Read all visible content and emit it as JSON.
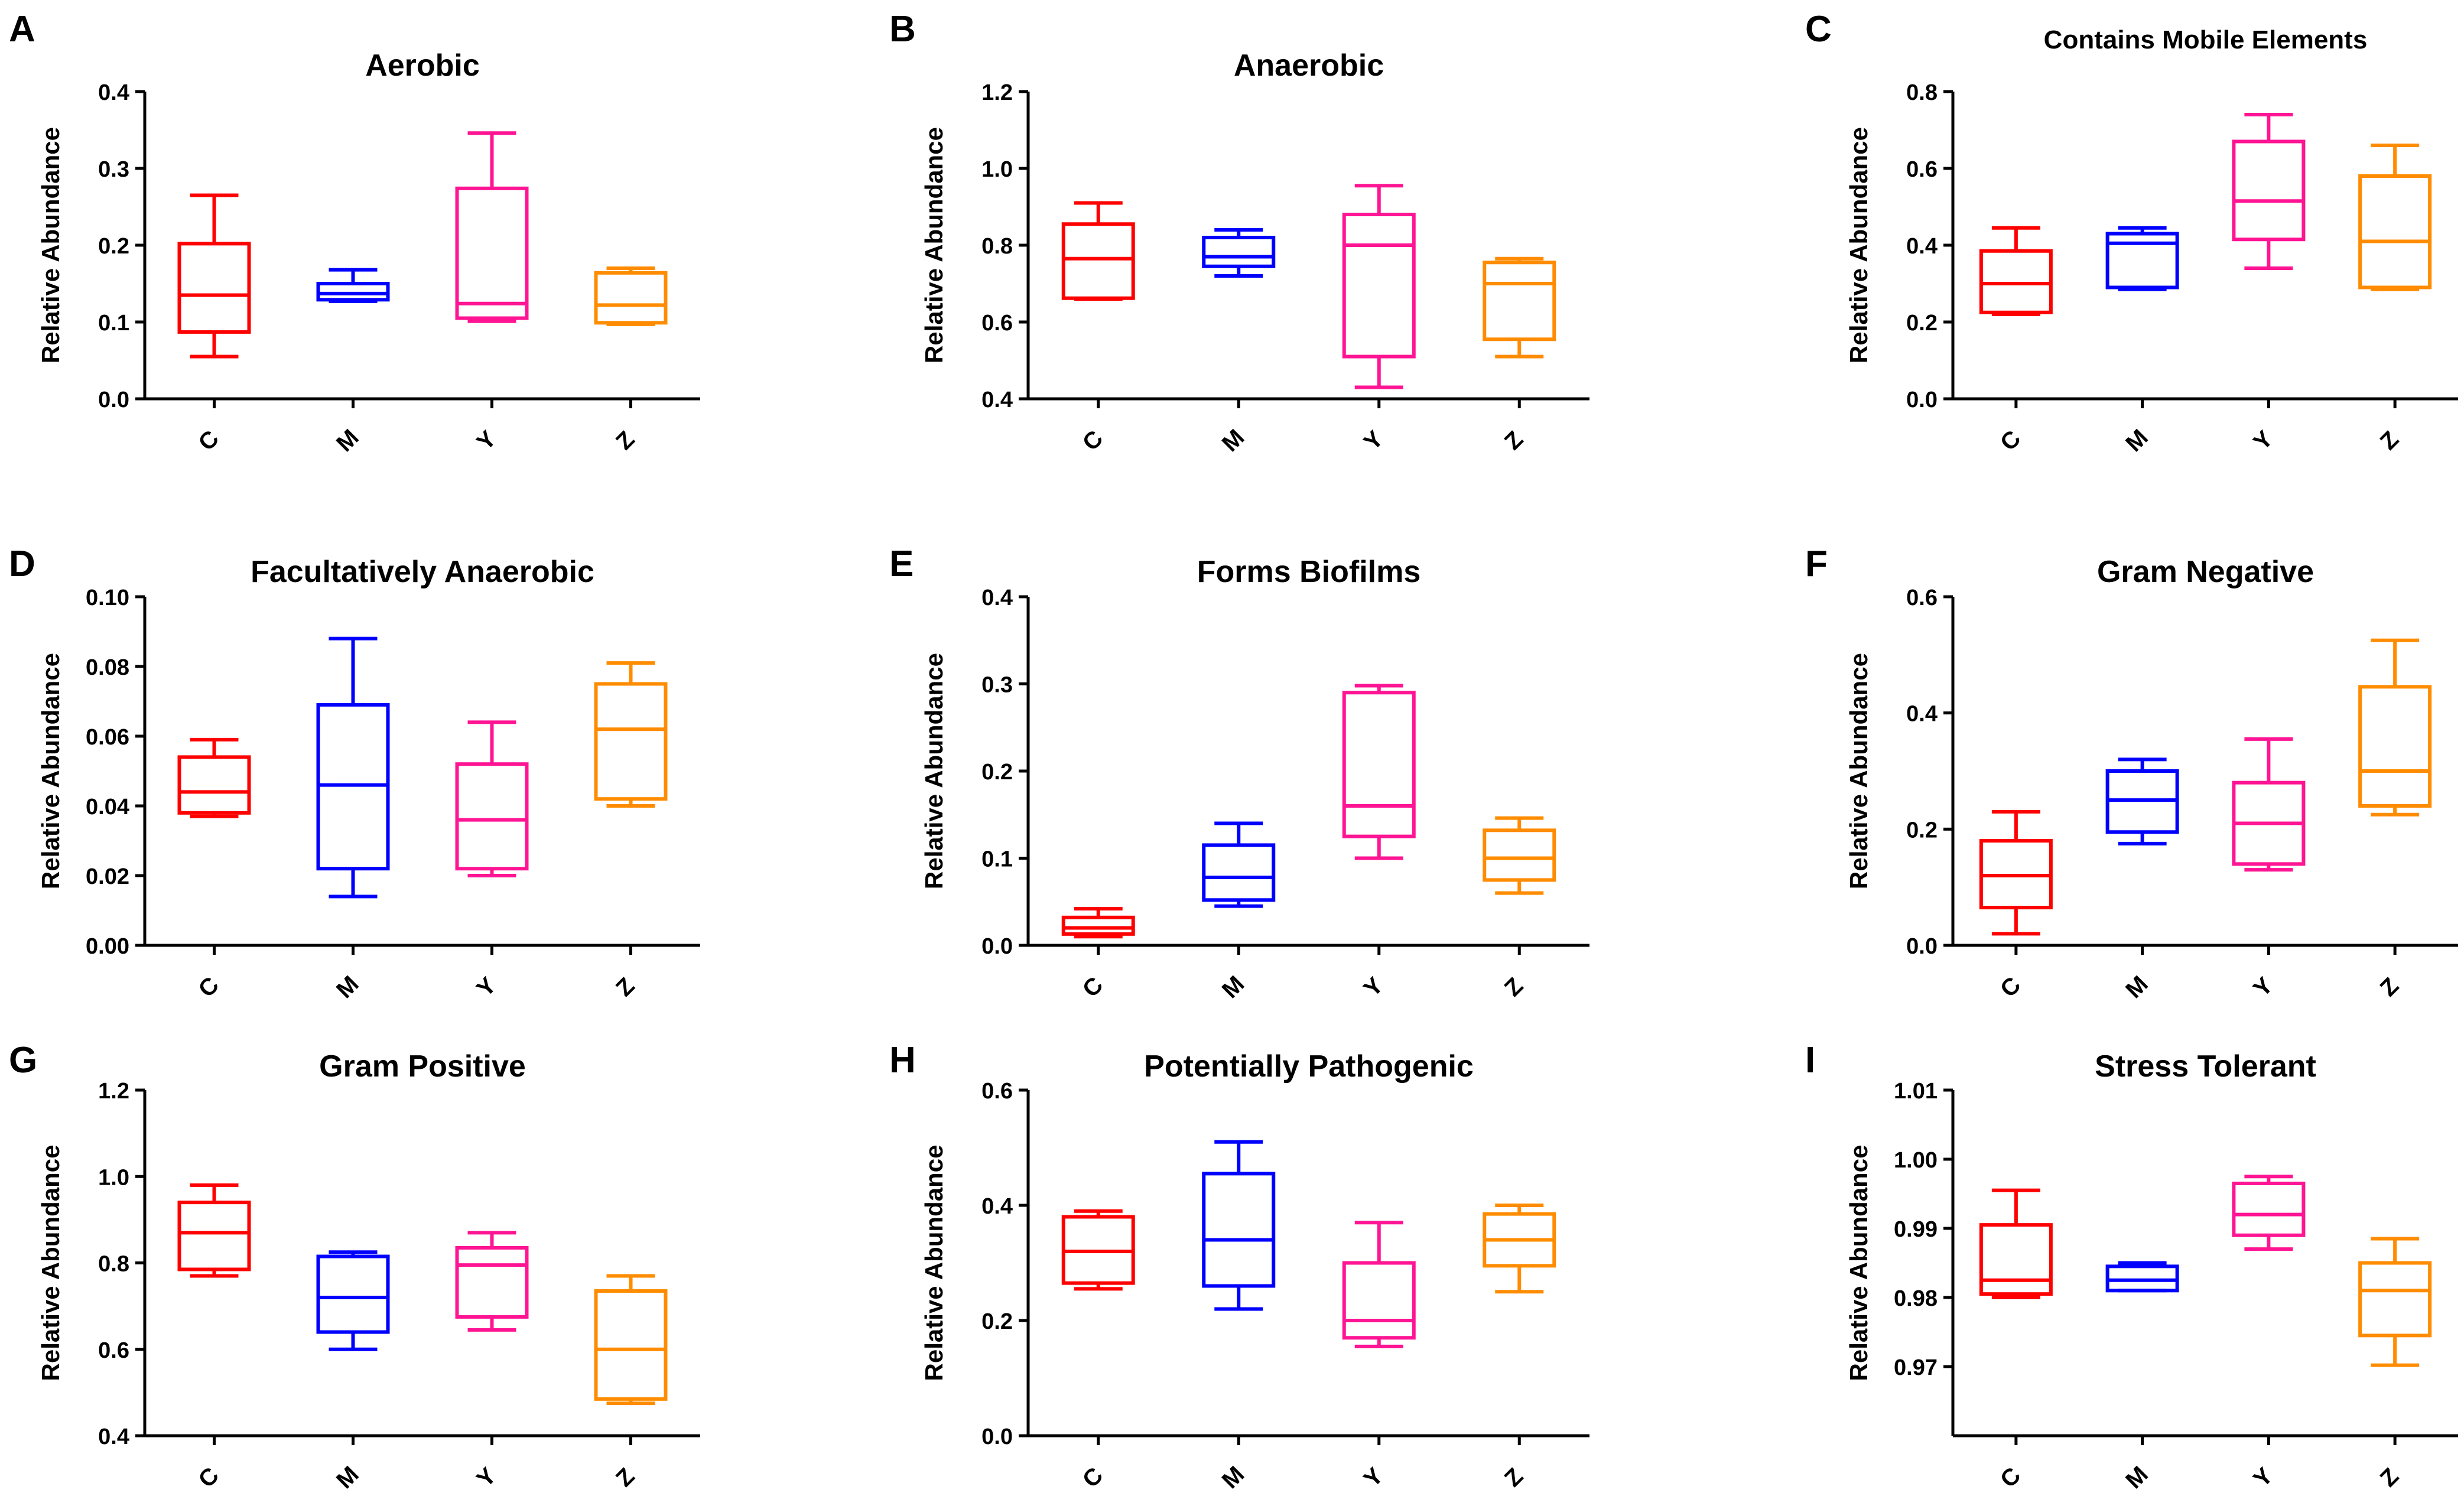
{
  "figure": {
    "ylabel": "Relative Abundance",
    "groups": [
      "C",
      "M",
      "Y",
      "Z"
    ],
    "group_colors": [
      "#ff0000",
      "#0000ff",
      "#ff1493",
      "#ff8c00"
    ]
  },
  "chart_data": [
    {
      "panel": "A",
      "title": "Aerobic",
      "type": "box",
      "xlabel": "",
      "ylabel": "Relative Abundance",
      "categories": [
        "C",
        "M",
        "Y",
        "Z"
      ],
      "ylim": [
        0,
        0.4
      ],
      "yticks": [
        "0.0",
        "0.1",
        "0.2",
        "0.3",
        "0.4"
      ],
      "boxes": [
        {
          "min": 0.055,
          "q1": 0.087,
          "median": 0.135,
          "q3": 0.202,
          "max": 0.265
        },
        {
          "min": 0.127,
          "q1": 0.129,
          "median": 0.137,
          "q3": 0.15,
          "max": 0.168
        },
        {
          "min": 0.101,
          "q1": 0.105,
          "median": 0.124,
          "q3": 0.274,
          "max": 0.346
        },
        {
          "min": 0.097,
          "q1": 0.099,
          "median": 0.122,
          "q3": 0.164,
          "max": 0.17
        }
      ]
    },
    {
      "panel": "B",
      "title": "Anaerobic",
      "type": "box",
      "xlabel": "",
      "ylabel": "Relative Abundance",
      "categories": [
        "C",
        "M",
        "Y",
        "Z"
      ],
      "ylim": [
        0.4,
        1.2
      ],
      "yticks": [
        "0.4",
        "0.6",
        "0.8",
        "1.0",
        "1.2"
      ],
      "boxes": [
        {
          "min": 0.66,
          "q1": 0.662,
          "median": 0.765,
          "q3": 0.855,
          "max": 0.91
        },
        {
          "min": 0.72,
          "q1": 0.745,
          "median": 0.77,
          "q3": 0.82,
          "max": 0.84
        },
        {
          "min": 0.43,
          "q1": 0.51,
          "median": 0.8,
          "q3": 0.88,
          "max": 0.955
        },
        {
          "min": 0.51,
          "q1": 0.555,
          "median": 0.7,
          "q3": 0.755,
          "max": 0.765
        }
      ]
    },
    {
      "panel": "C",
      "title": "Contains Mobile Elements",
      "type": "box",
      "xlabel": "",
      "ylabel": "Relative Abundance",
      "categories": [
        "C",
        "M",
        "Y",
        "Z"
      ],
      "ylim": [
        0,
        0.8
      ],
      "yticks": [
        "0.0",
        "0.2",
        "0.4",
        "0.6",
        "0.8"
      ],
      "boxes": [
        {
          "min": 0.22,
          "q1": 0.225,
          "median": 0.3,
          "q3": 0.385,
          "max": 0.445
        },
        {
          "min": 0.285,
          "q1": 0.29,
          "median": 0.405,
          "q3": 0.43,
          "max": 0.445
        },
        {
          "min": 0.34,
          "q1": 0.415,
          "median": 0.515,
          "q3": 0.67,
          "max": 0.74
        },
        {
          "min": 0.285,
          "q1": 0.29,
          "median": 0.41,
          "q3": 0.58,
          "max": 0.66
        }
      ]
    },
    {
      "panel": "D",
      "title": "Facultatively Anaerobic",
      "type": "box",
      "xlabel": "",
      "ylabel": "Relative Abundance",
      "categories": [
        "C",
        "M",
        "Y",
        "Z"
      ],
      "ylim": [
        0,
        0.1
      ],
      "yticks": [
        "0.00",
        "0.02",
        "0.04",
        "0.06",
        "0.08",
        "0.10"
      ],
      "boxes": [
        {
          "min": 0.037,
          "q1": 0.038,
          "median": 0.044,
          "q3": 0.054,
          "max": 0.059
        },
        {
          "min": 0.014,
          "q1": 0.022,
          "median": 0.046,
          "q3": 0.069,
          "max": 0.088
        },
        {
          "min": 0.02,
          "q1": 0.022,
          "median": 0.036,
          "q3": 0.052,
          "max": 0.064
        },
        {
          "min": 0.04,
          "q1": 0.042,
          "median": 0.062,
          "q3": 0.075,
          "max": 0.081
        }
      ]
    },
    {
      "panel": "E",
      "title": "Forms Biofilms",
      "type": "box",
      "xlabel": "",
      "ylabel": "Relative Abundance",
      "categories": [
        "C",
        "M",
        "Y",
        "Z"
      ],
      "ylim": [
        0,
        0.4
      ],
      "yticks": [
        "0.0",
        "0.1",
        "0.2",
        "0.3",
        "0.4"
      ],
      "boxes": [
        {
          "min": 0.01,
          "q1": 0.013,
          "median": 0.02,
          "q3": 0.032,
          "max": 0.042
        },
        {
          "min": 0.045,
          "q1": 0.052,
          "median": 0.078,
          "q3": 0.115,
          "max": 0.14
        },
        {
          "min": 0.1,
          "q1": 0.125,
          "median": 0.16,
          "q3": 0.29,
          "max": 0.298
        },
        {
          "min": 0.06,
          "q1": 0.075,
          "median": 0.1,
          "q3": 0.132,
          "max": 0.146
        }
      ]
    },
    {
      "panel": "F",
      "title": "Gram Negative",
      "type": "box",
      "xlabel": "",
      "ylabel": "Relative Abundance",
      "categories": [
        "C",
        "M",
        "Y",
        "Z"
      ],
      "ylim": [
        0,
        0.6
      ],
      "yticks": [
        "0.0",
        "0.2",
        "0.4",
        "0.6"
      ],
      "boxes": [
        {
          "min": 0.02,
          "q1": 0.065,
          "median": 0.12,
          "q3": 0.18,
          "max": 0.23
        },
        {
          "min": 0.175,
          "q1": 0.195,
          "median": 0.25,
          "q3": 0.3,
          "max": 0.32
        },
        {
          "min": 0.13,
          "q1": 0.14,
          "median": 0.21,
          "q3": 0.28,
          "max": 0.355
        },
        {
          "min": 0.225,
          "q1": 0.24,
          "median": 0.3,
          "q3": 0.445,
          "max": 0.525
        }
      ]
    },
    {
      "panel": "G",
      "title": "Gram Positive",
      "type": "box",
      "xlabel": "",
      "ylabel": "Relative Abundance",
      "categories": [
        "C",
        "M",
        "Y",
        "Z"
      ],
      "ylim": [
        0.4,
        1.2
      ],
      "yticks": [
        "0.4",
        "0.6",
        "0.8",
        "1.0",
        "1.2"
      ],
      "boxes": [
        {
          "min": 0.77,
          "q1": 0.785,
          "median": 0.87,
          "q3": 0.94,
          "max": 0.98
        },
        {
          "min": 0.6,
          "q1": 0.64,
          "median": 0.72,
          "q3": 0.815,
          "max": 0.825
        },
        {
          "min": 0.645,
          "q1": 0.675,
          "median": 0.795,
          "q3": 0.835,
          "max": 0.87
        },
        {
          "min": 0.475,
          "q1": 0.485,
          "median": 0.6,
          "q3": 0.735,
          "max": 0.77
        }
      ]
    },
    {
      "panel": "H",
      "title": "Potentially Pathogenic",
      "type": "box",
      "xlabel": "",
      "ylabel": "Relative Abundance",
      "categories": [
        "C",
        "M",
        "Y",
        "Z"
      ],
      "ylim": [
        0,
        0.6
      ],
      "yticks": [
        "0.0",
        "0.2",
        "0.4",
        "0.6"
      ],
      "boxes": [
        {
          "min": 0.255,
          "q1": 0.265,
          "median": 0.32,
          "q3": 0.38,
          "max": 0.39
        },
        {
          "min": 0.22,
          "q1": 0.26,
          "median": 0.34,
          "q3": 0.455,
          "max": 0.51
        },
        {
          "min": 0.155,
          "q1": 0.17,
          "median": 0.2,
          "q3": 0.3,
          "max": 0.37
        },
        {
          "min": 0.25,
          "q1": 0.295,
          "median": 0.34,
          "q3": 0.385,
          "max": 0.4
        }
      ]
    },
    {
      "panel": "I",
      "title": "Stress Tolerant",
      "type": "box",
      "xlabel": "",
      "ylabel": "Relative Abundance",
      "categories": [
        "C",
        "M",
        "Y",
        "Z"
      ],
      "ylim": [
        0.96,
        1.01
      ],
      "yticks": [
        "0.97",
        "0.98",
        "0.99",
        "1.00",
        "1.01"
      ],
      "yticks_start": 0.97,
      "boxes": [
        {
          "min": 0.98,
          "q1": 0.9805,
          "median": 0.9825,
          "q3": 0.9905,
          "max": 0.9955
        },
        {
          "min": 0.981,
          "q1": 0.981,
          "median": 0.9825,
          "q3": 0.9845,
          "max": 0.985
        },
        {
          "min": 0.987,
          "q1": 0.989,
          "median": 0.992,
          "q3": 0.9965,
          "max": 0.9975
        },
        {
          "min": 0.9702,
          "q1": 0.9745,
          "median": 0.981,
          "q3": 0.985,
          "max": 0.9885
        }
      ]
    }
  ]
}
